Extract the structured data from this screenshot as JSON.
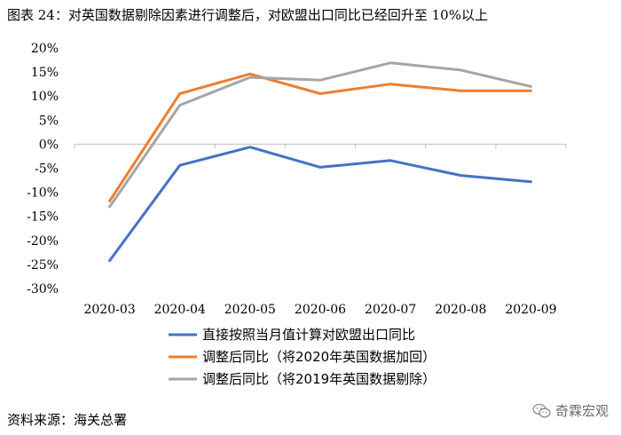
{
  "title": "图表 24：对英国数据剔除因素进行调整后，对欧盟出口同比已经回升至 10%以上",
  "source": "资料来源：海关总署",
  "watermark": "奇霖宏观",
  "chart_data": {
    "type": "line",
    "x": [
      "2020-03",
      "2020-04",
      "2020-05",
      "2020-06",
      "2020-07",
      "2020-08",
      "2020-09"
    ],
    "ylim": [
      -30,
      20
    ],
    "yticks": [
      -30,
      -25,
      -20,
      -15,
      -10,
      -5,
      0,
      5,
      10,
      15,
      20
    ],
    "ytick_labels": [
      "-30%",
      "-25%",
      "-20%",
      "-15%",
      "-10%",
      "-5%",
      "0%",
      "5%",
      "10%",
      "15%",
      "20%"
    ],
    "grid": false,
    "legend_position": "bottom",
    "series": [
      {
        "name": "直接按照当月值计算对欧盟出口同比",
        "color": "#4472C4",
        "values": [
          -24.2,
          -4.4,
          -0.6,
          -4.8,
          -3.4,
          -6.5,
          -7.8
        ]
      },
      {
        "name": "调整后同比（将2020年英国数据加回）",
        "color": "#ED7D31",
        "values": [
          -11.8,
          10.5,
          14.6,
          10.5,
          12.5,
          11.1,
          11.1
        ]
      },
      {
        "name": "调整后同比（将2019年英国数据剔除）",
        "color": "#A5A5A5",
        "values": [
          -13.0,
          8.1,
          13.9,
          13.3,
          16.9,
          15.4,
          12.0
        ]
      }
    ]
  }
}
